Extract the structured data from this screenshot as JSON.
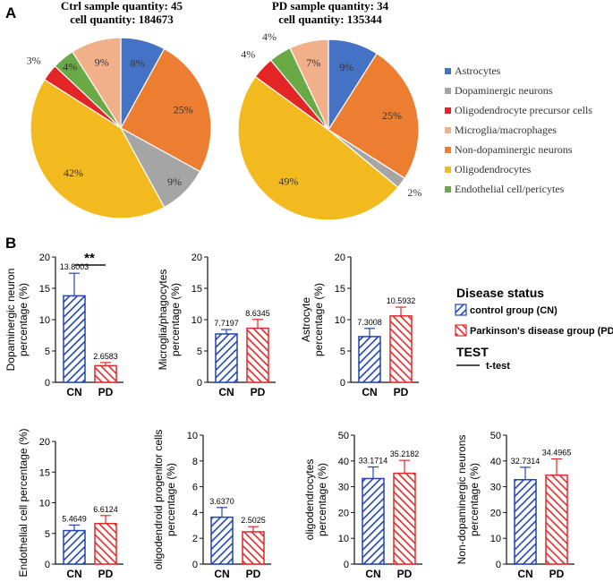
{
  "panel_labels": {
    "a": "A",
    "b": "B"
  },
  "chart_data": [
    {
      "type": "pie",
      "title_line1": "Ctrl sample quantity: 45",
      "title_line2": "cell quantity: 184673",
      "slices": [
        {
          "category": "Astrocytes",
          "value": 8,
          "label": "8%",
          "color": "#4472C4"
        },
        {
          "category": "Non-dopaminergic neurons",
          "value": 25,
          "label": "25%",
          "color": "#ED7D31"
        },
        {
          "category": "Dopaminergic neurons",
          "value": 9,
          "label": "9%",
          "color": "#A5A5A5"
        },
        {
          "category": "Oligodendrocytes",
          "value": 42,
          "label": "42%",
          "color": "#F2BA1E"
        },
        {
          "category": "Oligodendrocyte precursor cells",
          "value": 3,
          "label": "3%",
          "color": "#E32525"
        },
        {
          "category": "Endothelial cell/pericytes",
          "value": 4,
          "label": "4%",
          "color": "#6AAA46"
        },
        {
          "category": "Microglia/macrophages",
          "value": 9,
          "label": "9%",
          "color": "#F2B08A"
        }
      ]
    },
    {
      "type": "pie",
      "title_line1": "PD sample quantity: 34",
      "title_line2": "cell quantity: 135344",
      "slices": [
        {
          "category": "Astrocytes",
          "value": 9,
          "label": "9%",
          "color": "#4472C4"
        },
        {
          "category": "Non-dopaminergic neurons",
          "value": 25,
          "label": "25%",
          "color": "#ED7D31"
        },
        {
          "category": "Dopaminergic neurons",
          "value": 2,
          "label": "2%",
          "color": "#A5A5A5"
        },
        {
          "category": "Oligodendrocytes",
          "value": 49,
          "label": "49%",
          "color": "#F2BA1E"
        },
        {
          "category": "Oligodendrocyte precursor cells",
          "value": 4,
          "label": "4%",
          "color": "#E32525"
        },
        {
          "category": "Endothelial cell/pericytes",
          "value": 4,
          "label": "4%",
          "color": "#6AAA46"
        },
        {
          "category": "Microglia/macrophages",
          "value": 7,
          "label": "7%",
          "color": "#F2B08A"
        }
      ]
    },
    {
      "type": "bar",
      "ylabel": "Dopaminergic neuron\npercentage (%)",
      "categories": [
        "CN",
        "PD"
      ],
      "values": [
        13.8003,
        2.6583
      ],
      "labels": [
        "13.8003",
        "2.6583"
      ],
      "errors": [
        3.6,
        0.5
      ],
      "ylim": [
        0,
        20
      ],
      "ticks": [
        0,
        5,
        10,
        15,
        20
      ],
      "significance": "**"
    },
    {
      "type": "bar",
      "ylabel": "Microglia/phagocytes\npercentage (%)",
      "categories": [
        "CN",
        "PD"
      ],
      "values": [
        7.7197,
        8.6345
      ],
      "labels": [
        "7.7197",
        "8.6345"
      ],
      "errors": [
        0.7,
        1.4
      ],
      "ylim": [
        0,
        20
      ],
      "ticks": [
        0,
        5,
        10,
        15,
        20
      ]
    },
    {
      "type": "bar",
      "ylabel": "Astrocyte\npercentage (%)",
      "categories": [
        "CN",
        "PD"
      ],
      "values": [
        7.3008,
        10.5932
      ],
      "labels": [
        "7.3008",
        "10.5932"
      ],
      "errors": [
        1.3,
        1.4
      ],
      "ylim": [
        0,
        20
      ],
      "ticks": [
        0,
        5,
        10,
        15,
        20
      ]
    },
    {
      "type": "bar",
      "ylabel": "Endothelial cell percentage (%)",
      "categories": [
        "CN",
        "PD"
      ],
      "values": [
        5.4649,
        6.6124
      ],
      "labels": [
        "5.4649",
        "6.6124"
      ],
      "errors": [
        0.9,
        1.3
      ],
      "ylim": [
        0,
        20
      ],
      "ticks": [
        0,
        5,
        10,
        15,
        20
      ]
    },
    {
      "type": "bar",
      "ylabel": "oligodendroid progenitor cells\npercentage (%)",
      "categories": [
        "CN",
        "PD"
      ],
      "values": [
        3.637,
        2.5025
      ],
      "labels": [
        "3.6370",
        "2.5025"
      ],
      "errors": [
        0.75,
        0.4
      ],
      "ylim": [
        0,
        10
      ],
      "ticks": [
        0,
        2,
        4,
        6,
        8,
        10
      ]
    },
    {
      "type": "bar",
      "ylabel": "oligodendrocytes\npercentage (%)",
      "categories": [
        "CN",
        "PD"
      ],
      "values": [
        33.1714,
        35.2182
      ],
      "labels": [
        "33.1714",
        "35.2182"
      ],
      "errors": [
        4.5,
        5.0
      ],
      "ylim": [
        0,
        50
      ],
      "ticks": [
        0,
        10,
        20,
        30,
        40,
        50
      ]
    },
    {
      "type": "bar",
      "ylabel": "Non-dopaminergic neurons\npercentage (%)",
      "categories": [
        "CN",
        "PD"
      ],
      "values": [
        32.7314,
        34.4965
      ],
      "labels": [
        "32.7314",
        "34.4965"
      ],
      "errors": [
        4.8,
        6.3
      ],
      "ylim": [
        0,
        50
      ],
      "ticks": [
        0,
        10,
        20,
        30,
        40,
        50
      ]
    }
  ],
  "pie_legend": [
    {
      "label": "Astrocytes",
      "color": "#4472C4"
    },
    {
      "label": "Dopaminergic neurons",
      "color": "#A5A5A5"
    },
    {
      "label": "Oligodendrocyte precursor cells",
      "color": "#E32525"
    },
    {
      "label": "Microglia/macrophages",
      "color": "#F2B08A"
    },
    {
      "label": "Non-dopaminergic neurons",
      "color": "#ED7D31"
    },
    {
      "label": "Oligodendrocytes",
      "color": "#F2BA1E"
    },
    {
      "label": "Endothelial cell/pericytes",
      "color": "#6AAA46"
    }
  ],
  "bar_legend": {
    "title": "Disease status",
    "items": [
      {
        "label": "control group (CN)",
        "color": "#2245B0"
      },
      {
        "label": "Parkinson's disease group (PD)",
        "color": "#E02B2B"
      }
    ],
    "test_title": "TEST",
    "test_label": "t-test"
  },
  "colors": {
    "cn": "#2245B0",
    "pd": "#E02B2B"
  }
}
